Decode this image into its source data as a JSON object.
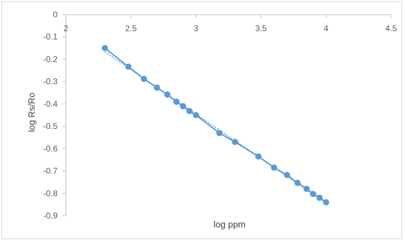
{
  "chart_data": {
    "type": "scatter",
    "title": "",
    "xlabel": "log ppm",
    "ylabel": "log Rs/Ro",
    "xlim": [
      2,
      4.5
    ],
    "ylim": [
      -0.9,
      0
    ],
    "x_axis_position": "top",
    "x_ticks": [
      "2",
      "2.5",
      "3",
      "3.5",
      "4",
      "4.5"
    ],
    "y_ticks": [
      "0",
      "-0.1",
      "-0.2",
      "-0.3",
      "-0.4",
      "-0.5",
      "-0.6",
      "-0.7",
      "-0.8",
      "-0.9"
    ],
    "x_tick_values": [
      2,
      2.5,
      3,
      3.5,
      4,
      4.5
    ],
    "y_tick_values": [
      0,
      -0.1,
      -0.2,
      -0.3,
      -0.4,
      -0.5,
      -0.6,
      -0.7,
      -0.8,
      -0.9
    ],
    "grid": false,
    "legend": "none",
    "series": [
      {
        "x": [
          2.3,
          2.48,
          2.6,
          2.7,
          2.78,
          2.85,
          2.9,
          2.95,
          3.0,
          3.18,
          3.3,
          3.48,
          3.6,
          3.7,
          3.78,
          3.85,
          3.9,
          3.95,
          4.0
        ],
        "y": [
          -0.15,
          -0.233,
          -0.288,
          -0.327,
          -0.358,
          -0.39,
          -0.41,
          -0.432,
          -0.45,
          -0.53,
          -0.57,
          -0.635,
          -0.685,
          -0.718,
          -0.753,
          -0.78,
          -0.803,
          -0.82,
          -0.84
        ],
        "color": "#5b9bd5",
        "line": "solid",
        "trendline": "linear-dotted"
      }
    ]
  }
}
